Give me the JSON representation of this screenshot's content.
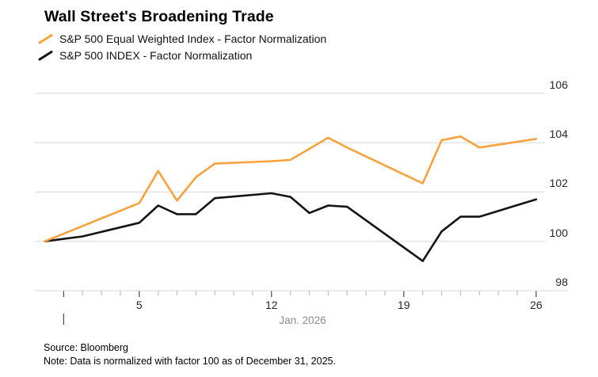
{
  "title": "Wall Street's Broadening Trade",
  "legend": {
    "items": [
      {
        "label": "S&P 500 Equal Weighted Index - Factor Normalization",
        "color": "#F7A23D"
      },
      {
        "label": "S&P 500 INDEX - Factor Normalization",
        "color": "#141414"
      }
    ]
  },
  "footer": {
    "source": "Source: Bloomberg",
    "note": "Note: Data is normalized with factor 100 as of December 31, 2025."
  },
  "colors": {
    "equal_weight_line": "#F7A23D",
    "index_line": "#141414",
    "gridline": "#D8D8D8",
    "axis_text": "#262626",
    "muted_text": "#8C8C8C",
    "major_tick": "#4A4A4A",
    "minor_tick": "#BDBDBD"
  },
  "chart_data": {
    "type": "line",
    "title": "Wall Street's Broadening Trade",
    "x": [
      "Dec. 31",
      "Jan. 2",
      "Jan. 5",
      "Jan. 6",
      "Jan. 7",
      "Jan. 8",
      "Jan. 9",
      "Jan. 12",
      "Jan. 13",
      "Jan. 14",
      "Jan. 15",
      "Jan. 16",
      "Jan. 20",
      "Jan. 21",
      "Jan. 22",
      "Jan. 23",
      "Jan. 26"
    ],
    "x_day_offsets": [
      0,
      2,
      5,
      6,
      7,
      8,
      9,
      12,
      13,
      14,
      15,
      16,
      20,
      21,
      22,
      23,
      26
    ],
    "series": [
      {
        "name": "S&P 500 Equal Weighted Index - Factor Normalization",
        "color": "#F7A23D",
        "values": [
          100.0,
          100.62,
          101.55,
          102.85,
          101.65,
          102.6,
          103.15,
          103.25,
          103.3,
          103.75,
          104.2,
          103.8,
          102.35,
          104.1,
          104.25,
          103.8,
          104.15
        ]
      },
      {
        "name": "S&P 500 INDEX - Factor Normalization",
        "color": "#141414",
        "values": [
          100.0,
          100.2,
          100.75,
          101.45,
          101.1,
          101.1,
          101.75,
          101.95,
          101.8,
          101.15,
          101.45,
          101.4,
          99.2,
          100.4,
          101.0,
          101.0,
          101.7
        ]
      }
    ],
    "y_axis": {
      "ticks": [
        98,
        100,
        102,
        104,
        106
      ],
      "side": "right",
      "ylim": [
        97.5,
        106.6
      ]
    },
    "x_axis": {
      "month_label": "Jan. 2026",
      "day_ticks": [
        1,
        2,
        3,
        4,
        5,
        6,
        7,
        8,
        9,
        10,
        11,
        12,
        13,
        14,
        15,
        16,
        17,
        18,
        19,
        20,
        21,
        22,
        23,
        24,
        25,
        26
      ],
      "major_day_ticks": [
        1,
        5,
        12,
        19,
        26
      ],
      "labeled_day_ticks": [
        5,
        12,
        19,
        26
      ]
    },
    "normalization_base": "100 as of December 31, 2025",
    "legend_position": "top-left",
    "grid": "horizontal"
  }
}
